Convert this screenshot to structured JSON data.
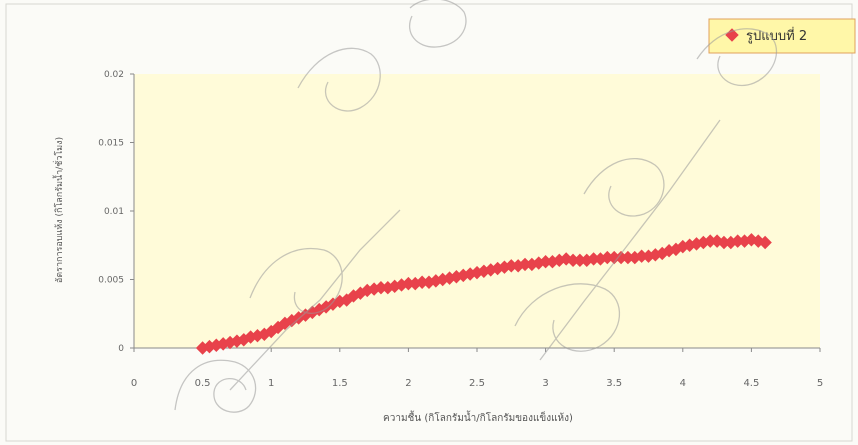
{
  "chart_data": {
    "type": "scatter",
    "title": "",
    "xlabel": "ความชื้น (กิโลกรัมน้ำ/กิโลกรัมของแข็งแห้ง)",
    "ylabel": "อัตราการอบแห้ง (กิโลกรัมน้ำ/ชั่วโมง)",
    "xlim": [
      0,
      5
    ],
    "ylim": [
      0,
      0.02
    ],
    "x_ticks": [
      "0",
      "0.5",
      "1",
      "1.5",
      "2",
      "2.5",
      "3",
      "3.5",
      "4",
      "4.5",
      "5"
    ],
    "y_ticks": [
      "0",
      "0.005",
      "0.01",
      "0.015",
      "0.02"
    ],
    "grid": false,
    "legend_position": "top-right",
    "series": [
      {
        "name": "รูปแบบที่ 2",
        "color": "#e8424b",
        "marker": "diamond",
        "x": [
          0.5,
          0.55,
          0.6,
          0.65,
          0.7,
          0.75,
          0.8,
          0.85,
          0.9,
          0.95,
          1.0,
          1.05,
          1.1,
          1.15,
          1.2,
          1.25,
          1.3,
          1.35,
          1.4,
          1.45,
          1.5,
          1.55,
          1.6,
          1.65,
          1.7,
          1.75,
          1.8,
          1.85,
          1.9,
          1.95,
          2.0,
          2.05,
          2.1,
          2.15,
          2.2,
          2.25,
          2.3,
          2.35,
          2.4,
          2.45,
          2.5,
          2.55,
          2.6,
          2.65,
          2.7,
          2.75,
          2.8,
          2.85,
          2.9,
          2.95,
          3.0,
          3.05,
          3.1,
          3.15,
          3.2,
          3.25,
          3.3,
          3.35,
          3.4,
          3.45,
          3.5,
          3.55,
          3.6,
          3.65,
          3.7,
          3.75,
          3.8,
          3.85,
          3.9,
          3.95,
          4.0,
          4.05,
          4.1,
          4.15,
          4.2,
          4.25,
          4.3,
          4.35,
          4.4,
          4.45,
          4.5,
          4.55,
          4.6
        ],
        "y": [
          0.0,
          0.0001,
          0.0002,
          0.0003,
          0.0004,
          0.0005,
          0.0006,
          0.0008,
          0.0009,
          0.001,
          0.0012,
          0.0015,
          0.0018,
          0.002,
          0.0022,
          0.0024,
          0.0026,
          0.0028,
          0.003,
          0.0032,
          0.0034,
          0.0035,
          0.0038,
          0.004,
          0.0042,
          0.0043,
          0.0044,
          0.0044,
          0.0045,
          0.0046,
          0.0047,
          0.0047,
          0.0048,
          0.0048,
          0.0049,
          0.005,
          0.0051,
          0.0052,
          0.0053,
          0.0054,
          0.0055,
          0.0056,
          0.0057,
          0.0058,
          0.0059,
          0.006,
          0.006,
          0.0061,
          0.0061,
          0.0062,
          0.0063,
          0.0063,
          0.0064,
          0.0065,
          0.0064,
          0.0064,
          0.0064,
          0.0065,
          0.0065,
          0.0066,
          0.0066,
          0.0066,
          0.0066,
          0.0066,
          0.0067,
          0.0067,
          0.0068,
          0.0069,
          0.0071,
          0.0072,
          0.0074,
          0.0075,
          0.0076,
          0.0077,
          0.0078,
          0.0078,
          0.0077,
          0.0077,
          0.0078,
          0.0078,
          0.0079,
          0.0078,
          0.0077
        ]
      }
    ]
  }
}
